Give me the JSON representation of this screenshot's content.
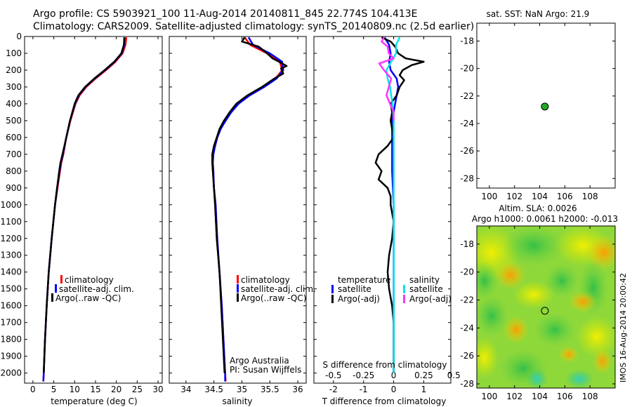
{
  "header": {
    "title_line1": "Argo profile: CS 5903921_100 11-Aug-2014 20140811_845 22.774S 104.413E",
    "title_line2": "Climatology: CARS2009. Satellite-adjusted climatology: synTS_20140809.nc (2.5d earlier)"
  },
  "colors": {
    "climatology": "#ff0000",
    "satellite": "#0000ff",
    "argo": "#000000",
    "sal_satellite": "#00e5ee",
    "sal_argo": "#ff33ff",
    "sst_dot": "#22aa22"
  },
  "chart_data": [
    {
      "id": "temperature",
      "type": "line",
      "xlabel": "temperature (deg C)",
      "ylabel": "",
      "xlim": [
        -2,
        31
      ],
      "ylim": [
        2060,
        0
      ],
      "xticks": [
        "0",
        "5",
        "10",
        "15",
        "20",
        "25",
        "30"
      ],
      "xtick_values": [
        0,
        5,
        10,
        15,
        20,
        25,
        30
      ],
      "yticks": [
        "0",
        "100",
        "200",
        "300",
        "400",
        "500",
        "600",
        "700",
        "800",
        "900",
        "1000",
        "1100",
        "1200",
        "1300",
        "1400",
        "1500",
        "1600",
        "1700",
        "1800",
        "1900",
        "2000"
      ],
      "ytick_values": [
        0,
        100,
        200,
        300,
        400,
        500,
        600,
        700,
        800,
        900,
        1000,
        1100,
        1200,
        1300,
        1400,
        1500,
        1600,
        1700,
        1800,
        1900,
        2000
      ],
      "legend": [
        "climatology",
        "satellite-adj. clim.",
        "Argo(..raw -QC)"
      ],
      "series": [
        {
          "name": "climatology",
          "color": "#ff0000",
          "depth": [
            5,
            50,
            100,
            150,
            200,
            250,
            300,
            350,
            400,
            500,
            600,
            700,
            750,
            800,
            900,
            1000,
            1200,
            1400,
            1600,
            1800,
            2000,
            2050
          ],
          "values": [
            22.4,
            22.2,
            21.5,
            19.8,
            17.5,
            15.0,
            12.8,
            11.2,
            10.2,
            9.0,
            8.0,
            7.3,
            6.8,
            6.5,
            5.9,
            5.3,
            4.5,
            3.8,
            3.3,
            2.9,
            2.6,
            2.5
          ]
        },
        {
          "name": "satellite-adj. clim.",
          "color": "#0000ff",
          "depth": [
            5,
            50,
            100,
            150,
            200,
            250,
            300,
            350,
            400,
            500,
            600,
            700,
            750,
            800,
            900,
            1000,
            1200,
            1400,
            1600,
            1800,
            2000,
            2050
          ],
          "values": [
            22.0,
            21.9,
            21.3,
            19.6,
            17.3,
            14.8,
            12.6,
            11.0,
            10.1,
            8.9,
            8.0,
            7.2,
            6.7,
            6.4,
            5.8,
            5.3,
            4.5,
            3.8,
            3.3,
            2.9,
            2.6,
            2.5
          ]
        },
        {
          "name": "Argo(..raw -QC)",
          "color": "#000000",
          "depth": [
            5,
            50,
            100,
            150,
            200,
            250,
            300,
            350,
            400,
            500,
            600,
            700,
            750,
            800,
            900,
            1000,
            1200,
            1400,
            1600,
            1800,
            2000
          ],
          "values": [
            21.9,
            21.8,
            21.2,
            19.5,
            17.2,
            14.7,
            12.5,
            10.9,
            10.0,
            8.9,
            8.0,
            7.1,
            6.6,
            6.3,
            5.8,
            5.3,
            4.5,
            3.8,
            3.3,
            2.9,
            2.6
          ]
        }
      ]
    },
    {
      "id": "salinity",
      "type": "line",
      "xlabel": "salinity",
      "xlim": [
        33.7,
        36.15
      ],
      "ylim": [
        2060,
        0
      ],
      "xticks": [
        "34",
        "34.5",
        "35",
        "35.5",
        "36"
      ],
      "xtick_values": [
        34,
        34.5,
        35,
        35.5,
        36
      ],
      "legend": [
        "climatology",
        "satellite-adj. clim.",
        "Argo(..raw -QC)"
      ],
      "annotation": [
        "Argo Australia",
        "PI: Susan Wijffels"
      ],
      "series": [
        {
          "name": "climatology",
          "color": "#ff0000",
          "depth": [
            5,
            50,
            100,
            150,
            200,
            250,
            300,
            350,
            400,
            450,
            500,
            550,
            600,
            650,
            700,
            750,
            800,
            900,
            1000,
            1200,
            1400,
            1600,
            1800,
            2000,
            2050
          ],
          "values": [
            35.05,
            35.15,
            35.45,
            35.68,
            35.72,
            35.6,
            35.38,
            35.12,
            34.92,
            34.8,
            34.7,
            34.62,
            34.56,
            34.52,
            34.48,
            34.47,
            34.48,
            34.5,
            34.52,
            34.55,
            34.6,
            34.64,
            34.67,
            34.7,
            34.71
          ]
        },
        {
          "name": "satellite-adj. clim.",
          "color": "#0000ff",
          "depth": [
            5,
            50,
            100,
            150,
            200,
            250,
            300,
            350,
            400,
            450,
            500,
            550,
            600,
            650,
            700,
            750,
            800,
            900,
            1000,
            1200,
            1400,
            1600,
            1800,
            2000,
            2050
          ],
          "values": [
            35.12,
            35.2,
            35.5,
            35.72,
            35.74,
            35.62,
            35.4,
            35.14,
            34.94,
            34.81,
            34.71,
            34.62,
            34.56,
            34.52,
            34.49,
            34.48,
            34.49,
            34.5,
            34.53,
            34.56,
            34.6,
            34.64,
            34.67,
            34.7,
            34.7
          ]
        },
        {
          "name": "Argo(..raw -QC)",
          "color": "#000000",
          "depth": [
            5,
            30,
            60,
            100,
            130,
            160,
            175,
            190,
            220,
            250,
            300,
            350,
            400,
            450,
            500,
            550,
            600,
            650,
            700,
            750,
            800,
            900,
            1000,
            1200,
            1400,
            1600,
            1800,
            2000
          ],
          "values": [
            35.05,
            35.0,
            35.3,
            35.45,
            35.55,
            35.72,
            35.8,
            35.7,
            35.74,
            35.58,
            35.36,
            35.1,
            34.9,
            34.78,
            34.68,
            34.6,
            34.55,
            34.5,
            34.47,
            34.47,
            34.48,
            34.5,
            34.52,
            34.55,
            34.6,
            34.63,
            34.66,
            34.69
          ]
        }
      ]
    },
    {
      "id": "differences",
      "type": "line",
      "xlabel": "T difference from climatology",
      "xlabel_top": "S difference from climatology",
      "xlim": [
        -2.65,
        1.9
      ],
      "ylim": [
        2060,
        0
      ],
      "xticks": [
        "-2",
        "-1",
        "0",
        "1"
      ],
      "xtick_values": [
        -2,
        -1,
        0,
        1
      ],
      "sticks": [
        "-0.5",
        "-0.25",
        "0",
        "0.25",
        "0.5"
      ],
      "stick_values": [
        -0.5,
        -0.25,
        0,
        0.25,
        0.5
      ],
      "legend_left_title": "temperature",
      "legend_right_title": "salinity",
      "legend": [
        "satellite",
        "Argo(-adj)",
        "satellite",
        "Argo(-adj)"
      ],
      "series": [
        {
          "name": "satellite",
          "kind": "T",
          "color": "#0000ff",
          "depth": [
            5,
            50,
            100,
            150,
            200,
            250,
            300,
            400,
            500,
            600,
            700,
            800,
            1000,
            1500,
            2000
          ],
          "values": [
            -0.3,
            -0.15,
            -0.1,
            -0.15,
            -0.1,
            0.1,
            0.15,
            0.05,
            -0.05,
            -0.05,
            -0.05,
            -0.05,
            0.0,
            0.0,
            0.0
          ]
        },
        {
          "name": "Argo(-adj)",
          "kind": "T",
          "color": "#000000",
          "depth": [
            5,
            30,
            60,
            100,
            130,
            150,
            170,
            200,
            230,
            260,
            300,
            350,
            400,
            450,
            500,
            550,
            600,
            650,
            700,
            750,
            800,
            850,
            900,
            950,
            1000,
            1100,
            1200,
            1300,
            1400,
            1500,
            1600,
            1700,
            1800,
            1900,
            2000
          ],
          "values": [
            -0.4,
            -0.1,
            0.05,
            0.15,
            0.4,
            1.0,
            0.6,
            0.3,
            0.2,
            0.35,
            0.2,
            0.1,
            -0.1,
            -0.05,
            -0.1,
            -0.05,
            0.0,
            -0.2,
            -0.5,
            -0.6,
            -0.4,
            -0.5,
            -0.2,
            -0.1,
            -0.1,
            0.0,
            -0.05,
            -0.15,
            -0.2,
            -0.15,
            -0.05,
            0.0,
            0.0,
            0.0,
            0.0
          ]
        },
        {
          "name": "satellite",
          "kind": "S",
          "color": "#00e5ee",
          "depth": [
            5,
            50,
            100,
            150,
            200,
            250,
            300,
            400,
            500,
            600,
            800,
            1000,
            1500,
            2000
          ],
          "values": [
            0.05,
            0.02,
            0.02,
            -0.02,
            -0.06,
            -0.05,
            -0.03,
            -0.01,
            0.0,
            0.0,
            0.0,
            0.0,
            0.0,
            0.0
          ]
        },
        {
          "name": "Argo(-adj)",
          "kind": "S",
          "color": "#ff33ff",
          "depth": [
            5,
            30,
            60,
            100,
            130,
            160,
            200,
            250,
            300,
            350,
            400,
            450,
            500
          ],
          "values": [
            -0.08,
            -0.1,
            -0.05,
            -0.04,
            0.0,
            -0.12,
            -0.08,
            -0.02,
            -0.04,
            -0.06,
            -0.03,
            0.0,
            0.0
          ]
        }
      ]
    },
    {
      "id": "sst_map",
      "type": "scatter",
      "title": "sat. SST: NaN Argo: 21.9",
      "xlim": [
        99,
        110
      ],
      "ylim": [
        -28.7,
        -16.7
      ],
      "xticks": [
        "100",
        "102",
        "104",
        "106",
        "108"
      ],
      "xtick_values": [
        100,
        102,
        104,
        106,
        108
      ],
      "yticks": [
        "-18",
        "-20",
        "-22",
        "-24",
        "-26",
        "-28"
      ],
      "ytick_values": [
        -18,
        -20,
        -22,
        -24,
        -26,
        -28
      ],
      "points": [
        {
          "lon": 104.41,
          "lat": -22.77
        }
      ]
    },
    {
      "id": "sla_map",
      "type": "heatmap",
      "title_line1": "Altim. SLA: 0.0026",
      "title_line2": "Argo h1000: 0.0061 h2000: -0.013",
      "xlim": [
        99,
        110
      ],
      "ylim": [
        -28.3,
        -16.7
      ],
      "xticks": [
        "100",
        "102",
        "104",
        "106",
        "108"
      ],
      "xtick_values": [
        100,
        102,
        104,
        106,
        108
      ],
      "yticks": [
        "-18",
        "-20",
        "-22",
        "-24",
        "-26",
        "-28"
      ],
      "ytick_values": [
        -18,
        -20,
        -22,
        -24,
        -26,
        -28
      ],
      "points": [
        {
          "lon": 104.41,
          "lat": -22.77
        }
      ],
      "side_label": "IMOS 16-Aug-2014 20:00:42"
    }
  ]
}
